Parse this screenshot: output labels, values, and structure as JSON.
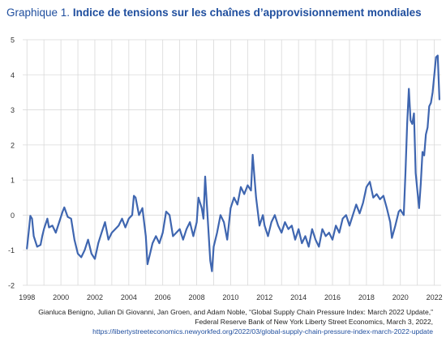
{
  "title_prefix": "Graphique 1.",
  "title_main": "Indice de tensions sur les chaînes d’approvisionnement mondiales",
  "source_line1": "Gianluca Benigno, Julian Di Giovanni, Jan Groen, and Adam Noble, “Global Supply Chain Pressure Index: March 2022 Update,”",
  "source_line2": "Federal Reserve Bank of New York Liberty Street Economics, March 3, 2022,",
  "source_url": "https://libertystreeteconomics.newyorkfed.org/2022/03/global-supply-chain-pressure-index-march-2022-update",
  "colors": {
    "line": "#3f66b0",
    "grid": "#d9d9d9",
    "title": "#1f4e9e"
  },
  "chart_data": {
    "type": "line",
    "title": "Indice de tensions sur les chaînes d’approvisionnement mondiales",
    "xlabel": "",
    "ylabel": "",
    "xlim": [
      1997.75,
      2022.4
    ],
    "ylim": [
      -2,
      5
    ],
    "y_ticks": [
      -2,
      -1,
      0,
      1,
      2,
      3,
      4,
      5
    ],
    "x_ticks": [
      1998,
      2000,
      2002,
      2004,
      2006,
      2008,
      2010,
      2012,
      2014,
      2016,
      2018,
      2020,
      2022
    ],
    "grid": true,
    "legend": "none",
    "series": [
      {
        "values": [
          [
            1998.0,
            -0.95
          ],
          [
            1998.1,
            -0.5
          ],
          [
            1998.2,
            -0.02
          ],
          [
            1998.3,
            -0.1
          ],
          [
            1998.4,
            -0.6
          ],
          [
            1998.6,
            -0.9
          ],
          [
            1998.8,
            -0.85
          ],
          [
            1998.9,
            -0.6
          ],
          [
            1999.0,
            -0.4
          ],
          [
            1999.2,
            -0.1
          ],
          [
            1999.3,
            -0.35
          ],
          [
            1999.5,
            -0.3
          ],
          [
            1999.7,
            -0.5
          ],
          [
            1999.9,
            -0.2
          ],
          [
            2000.1,
            0.1
          ],
          [
            2000.2,
            0.22
          ],
          [
            2000.4,
            -0.05
          ],
          [
            2000.6,
            -0.1
          ],
          [
            2000.8,
            -0.7
          ],
          [
            2001.0,
            -1.1
          ],
          [
            2001.2,
            -1.2
          ],
          [
            2001.4,
            -1.0
          ],
          [
            2001.6,
            -0.7
          ],
          [
            2001.8,
            -1.1
          ],
          [
            2002.0,
            -1.25
          ],
          [
            2002.2,
            -0.8
          ],
          [
            2002.4,
            -0.5
          ],
          [
            2002.6,
            -0.2
          ],
          [
            2002.8,
            -0.7
          ],
          [
            2003.0,
            -0.5
          ],
          [
            2003.2,
            -0.4
          ],
          [
            2003.4,
            -0.3
          ],
          [
            2003.6,
            -0.1
          ],
          [
            2003.8,
            -0.35
          ],
          [
            2004.0,
            -0.1
          ],
          [
            2004.2,
            0.0
          ],
          [
            2004.3,
            0.55
          ],
          [
            2004.4,
            0.5
          ],
          [
            2004.6,
            0.0
          ],
          [
            2004.8,
            0.2
          ],
          [
            2005.0,
            -0.6
          ],
          [
            2005.1,
            -1.4
          ],
          [
            2005.2,
            -1.2
          ],
          [
            2005.4,
            -0.8
          ],
          [
            2005.6,
            -0.6
          ],
          [
            2005.8,
            -0.8
          ],
          [
            2006.0,
            -0.5
          ],
          [
            2006.2,
            0.1
          ],
          [
            2006.4,
            0.0
          ],
          [
            2006.6,
            -0.6
          ],
          [
            2006.8,
            -0.5
          ],
          [
            2007.0,
            -0.4
          ],
          [
            2007.2,
            -0.7
          ],
          [
            2007.4,
            -0.4
          ],
          [
            2007.6,
            -0.2
          ],
          [
            2007.8,
            -0.6
          ],
          [
            2008.0,
            -0.2
          ],
          [
            2008.1,
            0.5
          ],
          [
            2008.3,
            0.2
          ],
          [
            2008.4,
            -0.1
          ],
          [
            2008.5,
            1.1
          ],
          [
            2008.6,
            0.3
          ],
          [
            2008.8,
            -1.3
          ],
          [
            2008.9,
            -1.6
          ],
          [
            2009.0,
            -0.9
          ],
          [
            2009.2,
            -0.5
          ],
          [
            2009.4,
            0.0
          ],
          [
            2009.6,
            -0.2
          ],
          [
            2009.8,
            -0.7
          ],
          [
            2010.0,
            0.2
          ],
          [
            2010.2,
            0.5
          ],
          [
            2010.4,
            0.3
          ],
          [
            2010.6,
            0.8
          ],
          [
            2010.8,
            0.6
          ],
          [
            2011.0,
            0.85
          ],
          [
            2011.2,
            0.7
          ],
          [
            2011.3,
            1.72
          ],
          [
            2011.5,
            0.5
          ],
          [
            2011.7,
            -0.3
          ],
          [
            2011.9,
            0.0
          ],
          [
            2012.0,
            -0.3
          ],
          [
            2012.2,
            -0.6
          ],
          [
            2012.4,
            -0.2
          ],
          [
            2012.6,
            0.0
          ],
          [
            2012.8,
            -0.3
          ],
          [
            2013.0,
            -0.5
          ],
          [
            2013.2,
            -0.2
          ],
          [
            2013.4,
            -0.4
          ],
          [
            2013.6,
            -0.3
          ],
          [
            2013.8,
            -0.7
          ],
          [
            2014.0,
            -0.4
          ],
          [
            2014.2,
            -0.8
          ],
          [
            2014.4,
            -0.6
          ],
          [
            2014.6,
            -0.9
          ],
          [
            2014.8,
            -0.4
          ],
          [
            2015.0,
            -0.7
          ],
          [
            2015.2,
            -0.9
          ],
          [
            2015.4,
            -0.4
          ],
          [
            2015.6,
            -0.6
          ],
          [
            2015.8,
            -0.5
          ],
          [
            2016.0,
            -0.7
          ],
          [
            2016.2,
            -0.3
          ],
          [
            2016.4,
            -0.5
          ],
          [
            2016.6,
            -0.1
          ],
          [
            2016.8,
            0.0
          ],
          [
            2017.0,
            -0.3
          ],
          [
            2017.2,
            0.0
          ],
          [
            2017.4,
            0.3
          ],
          [
            2017.6,
            0.05
          ],
          [
            2017.8,
            0.35
          ],
          [
            2018.0,
            0.8
          ],
          [
            2018.2,
            0.95
          ],
          [
            2018.4,
            0.5
          ],
          [
            2018.6,
            0.6
          ],
          [
            2018.8,
            0.45
          ],
          [
            2019.0,
            0.55
          ],
          [
            2019.2,
            0.2
          ],
          [
            2019.4,
            -0.2
          ],
          [
            2019.5,
            -0.65
          ],
          [
            2019.7,
            -0.3
          ],
          [
            2019.9,
            0.1
          ],
          [
            2020.0,
            0.15
          ],
          [
            2020.2,
            0.0
          ],
          [
            2020.3,
            1.2
          ],
          [
            2020.4,
            2.6
          ],
          [
            2020.5,
            3.6
          ],
          [
            2020.6,
            2.7
          ],
          [
            2020.7,
            2.6
          ],
          [
            2020.8,
            2.9
          ],
          [
            2020.9,
            1.2
          ],
          [
            2021.0,
            0.7
          ],
          [
            2021.1,
            0.2
          ],
          [
            2021.2,
            0.9
          ],
          [
            2021.3,
            1.8
          ],
          [
            2021.4,
            1.7
          ],
          [
            2021.5,
            2.3
          ],
          [
            2021.6,
            2.5
          ],
          [
            2021.7,
            3.1
          ],
          [
            2021.8,
            3.2
          ],
          [
            2021.9,
            3.5
          ],
          [
            2022.0,
            4.0
          ],
          [
            2022.1,
            4.5
          ],
          [
            2022.2,
            4.55
          ],
          [
            2022.3,
            3.3
          ]
        ]
      }
    ]
  }
}
